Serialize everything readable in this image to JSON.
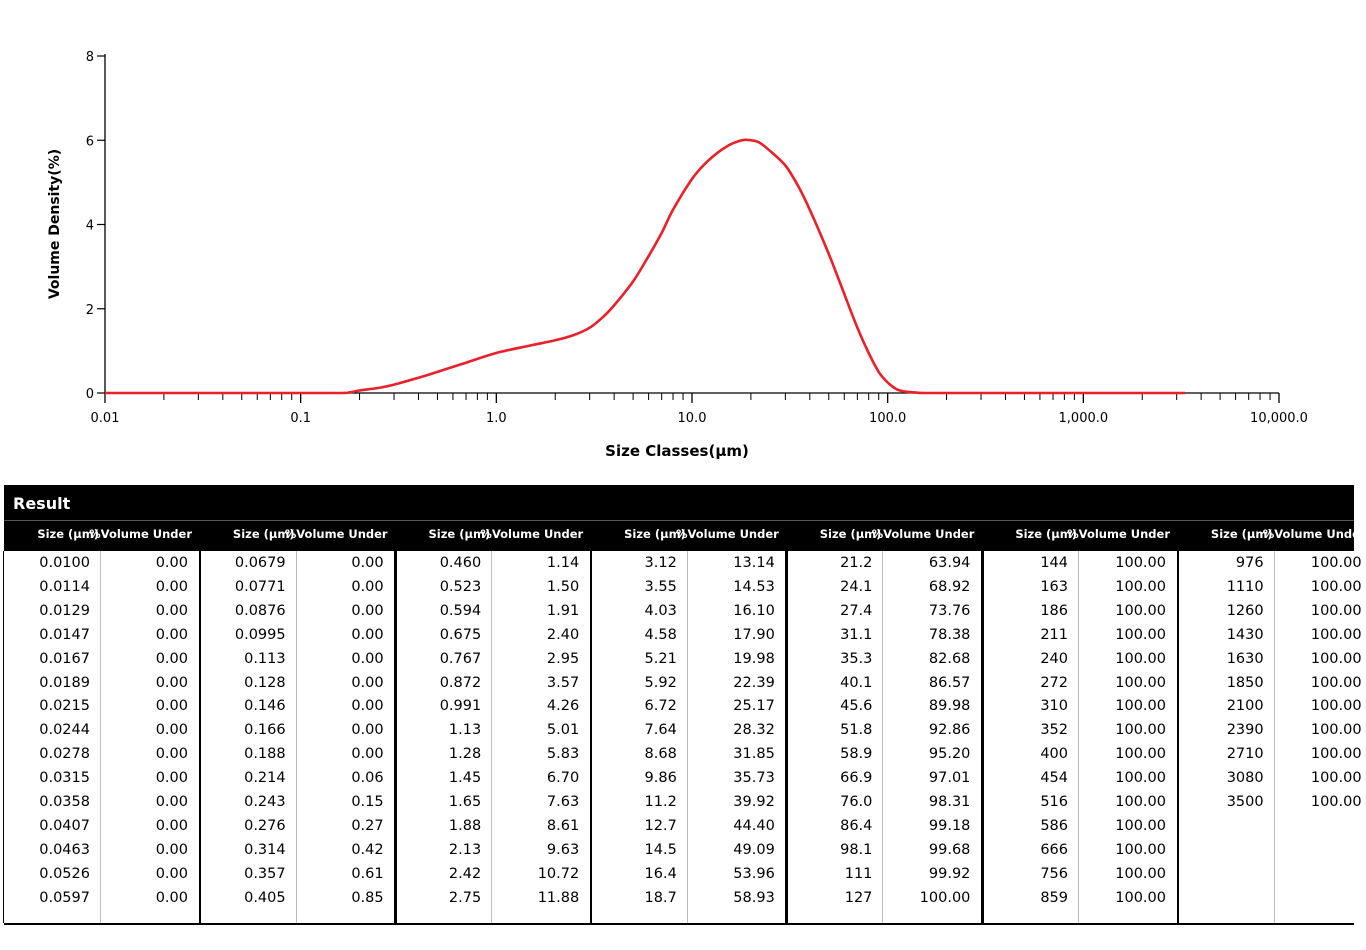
{
  "chart_data": {
    "type": "line",
    "xlabel": "Size Classes(µm)",
    "ylabel": "Volume Density(%)",
    "x_scale": "log",
    "xlim": [
      0.01,
      10000
    ],
    "ylim": [
      0,
      8
    ],
    "x_tick_labels": [
      "0.01",
      "0.1",
      "1.0",
      "10.0",
      "100.0",
      "1,000.0",
      "10,000.0"
    ],
    "y_tick_labels": [
      "0",
      "2",
      "4",
      "6",
      "8"
    ],
    "color": "#e8202a",
    "series": [
      {
        "x": [
          0.01,
          0.05,
          0.15,
          0.18,
          0.2,
          0.25,
          0.3,
          0.4,
          0.5,
          0.7,
          1.0,
          1.5,
          2.0,
          2.5,
          3.0,
          3.5,
          4.0,
          5.0,
          6.0,
          7.0,
          8.0,
          10.0,
          12.0,
          15.0,
          18.0,
          20.0,
          22.0,
          25.0,
          30.0,
          35.0,
          40.0,
          50.0,
          60.0,
          70.0,
          80.0,
          90.0,
          100.0,
          110.0,
          120.0,
          140.0,
          160.0,
          300.0,
          1000.0,
          3300.0
        ],
        "y": [
          0,
          0,
          0,
          0.02,
          0.06,
          0.12,
          0.2,
          0.36,
          0.5,
          0.72,
          0.95,
          1.13,
          1.25,
          1.38,
          1.55,
          1.8,
          2.08,
          2.65,
          3.25,
          3.8,
          4.35,
          5.08,
          5.5,
          5.85,
          6.0,
          6.0,
          5.95,
          5.75,
          5.4,
          4.9,
          4.35,
          3.3,
          2.35,
          1.55,
          0.95,
          0.5,
          0.25,
          0.1,
          0.04,
          0.01,
          0,
          0,
          0,
          0
        ]
      }
    ]
  },
  "result": {
    "title": "Result",
    "size_header": "Size (µm)",
    "volume_header": "%Volume Under",
    "columns": [
      {
        "sizes": [
          "0.0100",
          "0.0114",
          "0.0129",
          "0.0147",
          "0.0167",
          "0.0189",
          "0.0215",
          "0.0244",
          "0.0278",
          "0.0315",
          "0.0358",
          "0.0407",
          "0.0463",
          "0.0526",
          "0.0597"
        ],
        "volumes": [
          "0.00",
          "0.00",
          "0.00",
          "0.00",
          "0.00",
          "0.00",
          "0.00",
          "0.00",
          "0.00",
          "0.00",
          "0.00",
          "0.00",
          "0.00",
          "0.00",
          "0.00"
        ]
      },
      {
        "sizes": [
          "0.0679",
          "0.0771",
          "0.0876",
          "0.0995",
          "0.113",
          "0.128",
          "0.146",
          "0.166",
          "0.188",
          "0.214",
          "0.243",
          "0.276",
          "0.314",
          "0.357",
          "0.405"
        ],
        "volumes": [
          "0.00",
          "0.00",
          "0.00",
          "0.00",
          "0.00",
          "0.00",
          "0.00",
          "0.00",
          "0.00",
          "0.06",
          "0.15",
          "0.27",
          "0.42",
          "0.61",
          "0.85"
        ]
      },
      {
        "sizes": [
          "0.460",
          "0.523",
          "0.594",
          "0.675",
          "0.767",
          "0.872",
          "0.991",
          "1.13",
          "1.28",
          "1.45",
          "1.65",
          "1.88",
          "2.13",
          "2.42",
          "2.75"
        ],
        "volumes": [
          "1.14",
          "1.50",
          "1.91",
          "2.40",
          "2.95",
          "3.57",
          "4.26",
          "5.01",
          "5.83",
          "6.70",
          "7.63",
          "8.61",
          "9.63",
          "10.72",
          "11.88"
        ]
      },
      {
        "sizes": [
          "3.12",
          "3.55",
          "4.03",
          "4.58",
          "5.21",
          "5.92",
          "6.72",
          "7.64",
          "8.68",
          "9.86",
          "11.2",
          "12.7",
          "14.5",
          "16.4",
          "18.7"
        ],
        "volumes": [
          "13.14",
          "14.53",
          "16.10",
          "17.90",
          "19.98",
          "22.39",
          "25.17",
          "28.32",
          "31.85",
          "35.73",
          "39.92",
          "44.40",
          "49.09",
          "53.96",
          "58.93"
        ]
      },
      {
        "sizes": [
          "21.2",
          "24.1",
          "27.4",
          "31.1",
          "35.3",
          "40.1",
          "45.6",
          "51.8",
          "58.9",
          "66.9",
          "76.0",
          "86.4",
          "98.1",
          "111",
          "127"
        ],
        "volumes": [
          "63.94",
          "68.92",
          "73.76",
          "78.38",
          "82.68",
          "86.57",
          "89.98",
          "92.86",
          "95.20",
          "97.01",
          "98.31",
          "99.18",
          "99.68",
          "99.92",
          "100.00"
        ]
      },
      {
        "sizes": [
          "144",
          "163",
          "186",
          "211",
          "240",
          "272",
          "310",
          "352",
          "400",
          "454",
          "516",
          "586",
          "666",
          "756",
          "859"
        ],
        "volumes": [
          "100.00",
          "100.00",
          "100.00",
          "100.00",
          "100.00",
          "100.00",
          "100.00",
          "100.00",
          "100.00",
          "100.00",
          "100.00",
          "100.00",
          "100.00",
          "100.00",
          "100.00"
        ]
      },
      {
        "sizes": [
          "976",
          "1110",
          "1260",
          "1430",
          "1630",
          "1850",
          "2100",
          "2390",
          "2710",
          "3080",
          "3500"
        ],
        "volumes": [
          "100.00",
          "100.00",
          "100.00",
          "100.00",
          "100.00",
          "100.00",
          "100.00",
          "100.00",
          "100.00",
          "100.00",
          "100.00"
        ]
      }
    ]
  }
}
